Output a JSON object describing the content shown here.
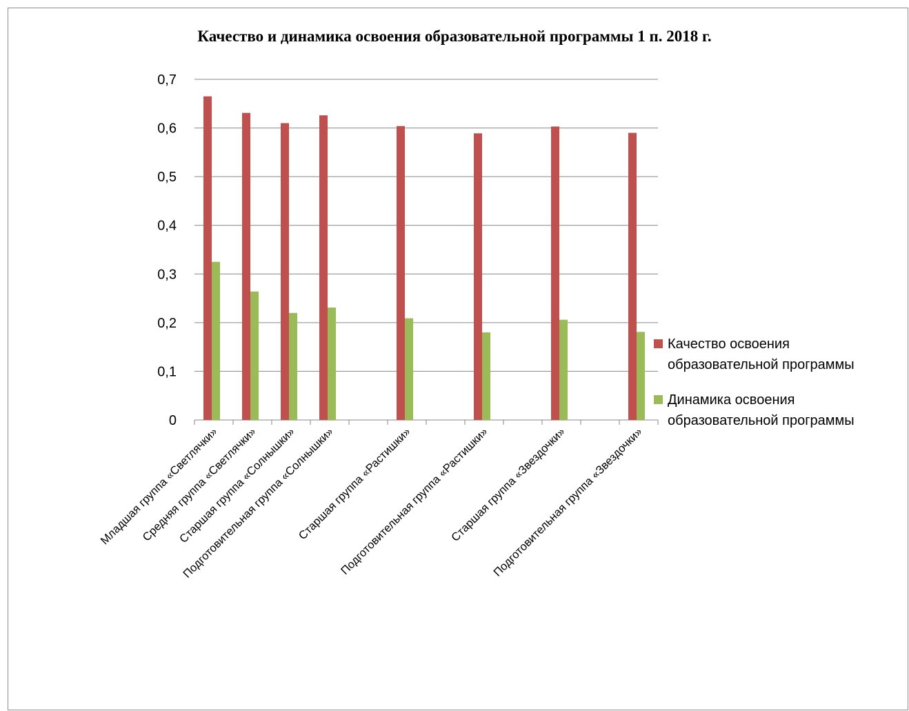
{
  "chart_data": {
    "type": "bar",
    "title": "Качество и динамика освоения образовательной программы 1 п. 2018 г.",
    "xlabel": "",
    "ylabel": "",
    "ylim": [
      0,
      0.7
    ],
    "yticks": [
      "0",
      "0,1",
      "0,2",
      "0,3",
      "0,4",
      "0,5",
      "0,6",
      "0,7"
    ],
    "grid": true,
    "legend_position": "right",
    "categories": [
      "Младшая группа «Светлячки»",
      "Средняя группа «Светлячки»",
      "Старшая группа «Солнышки»",
      "Подготовительная группа «Солнышки»",
      "",
      "Старшая группа «Растишки»",
      "",
      "Подготовительная группа «Растишки»",
      "",
      "Старшая группа «Звездочки»",
      "",
      "Подготовительная группа «Звездочки»"
    ],
    "series": [
      {
        "name": "Качество  освоения образовательной программы",
        "color": "#c0504d",
        "values": [
          0.665,
          0.631,
          0.61,
          0.626,
          null,
          0.604,
          null,
          0.589,
          null,
          0.603,
          null,
          0.59
        ]
      },
      {
        "name": "Динамика освоения образовательной программы",
        "color": "#9bbb59",
        "values": [
          0.325,
          0.264,
          0.22,
          0.231,
          null,
          0.209,
          null,
          0.18,
          null,
          0.206,
          null,
          0.181
        ]
      }
    ]
  }
}
